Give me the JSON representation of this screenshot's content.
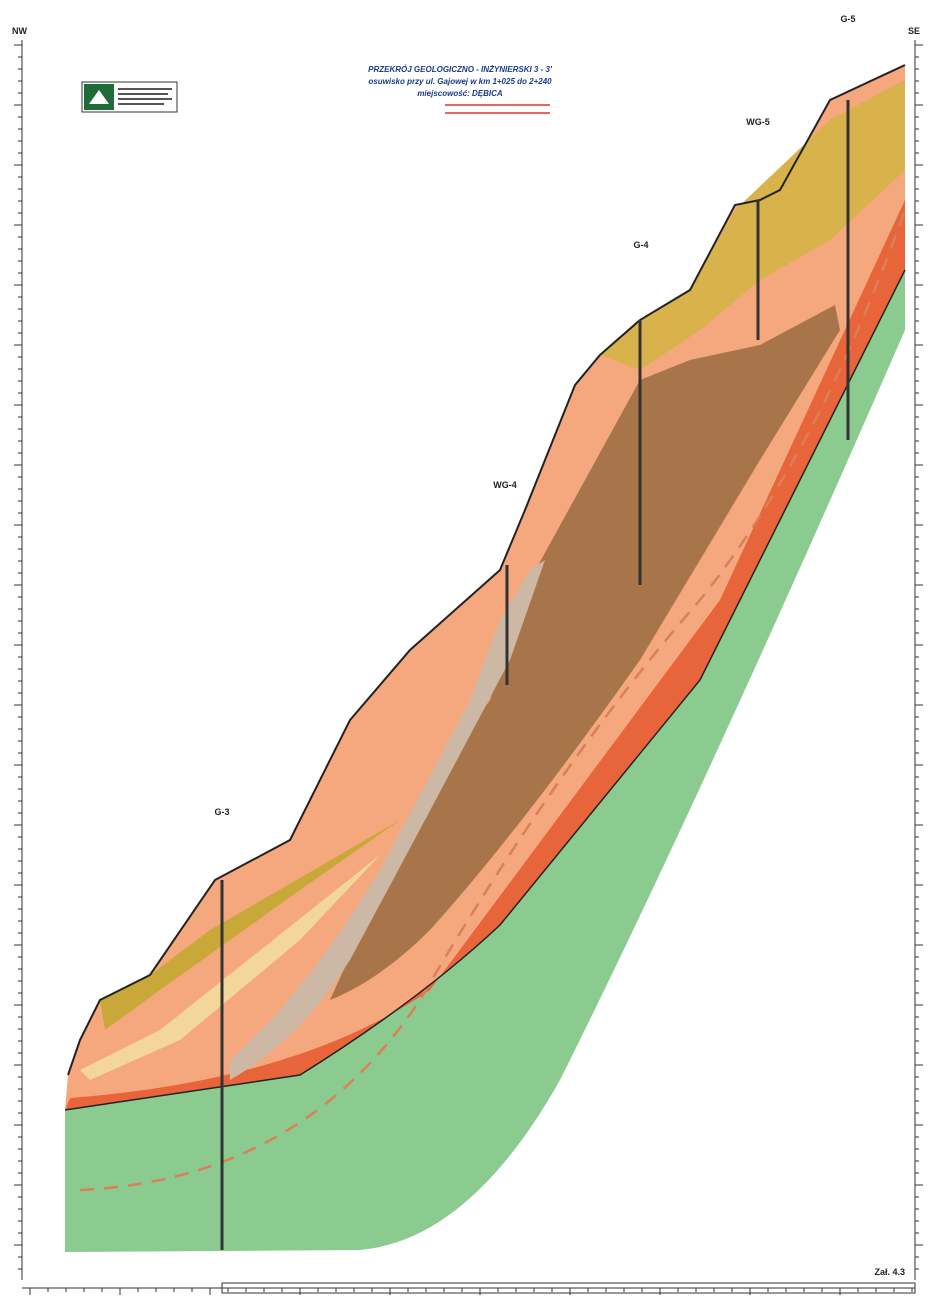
{
  "header": {
    "title": "PRZEKRÓJ GEOLOGICZNO - INŻYNIERSKI 3 - 3'",
    "subtitle": "osuwisko przy ul. Gajowej w km 1+025 do 2+240",
    "location": "miejscowość: DĘBICA"
  },
  "orientation": {
    "left": "NW",
    "right": "SE"
  },
  "boreholes": [
    {
      "label": "G-3"
    },
    {
      "label": "WG-4"
    },
    {
      "label": "G-4"
    },
    {
      "label": "WG-5"
    },
    {
      "label": "G-5"
    }
  ],
  "annex": "Zał. 4.3"
}
